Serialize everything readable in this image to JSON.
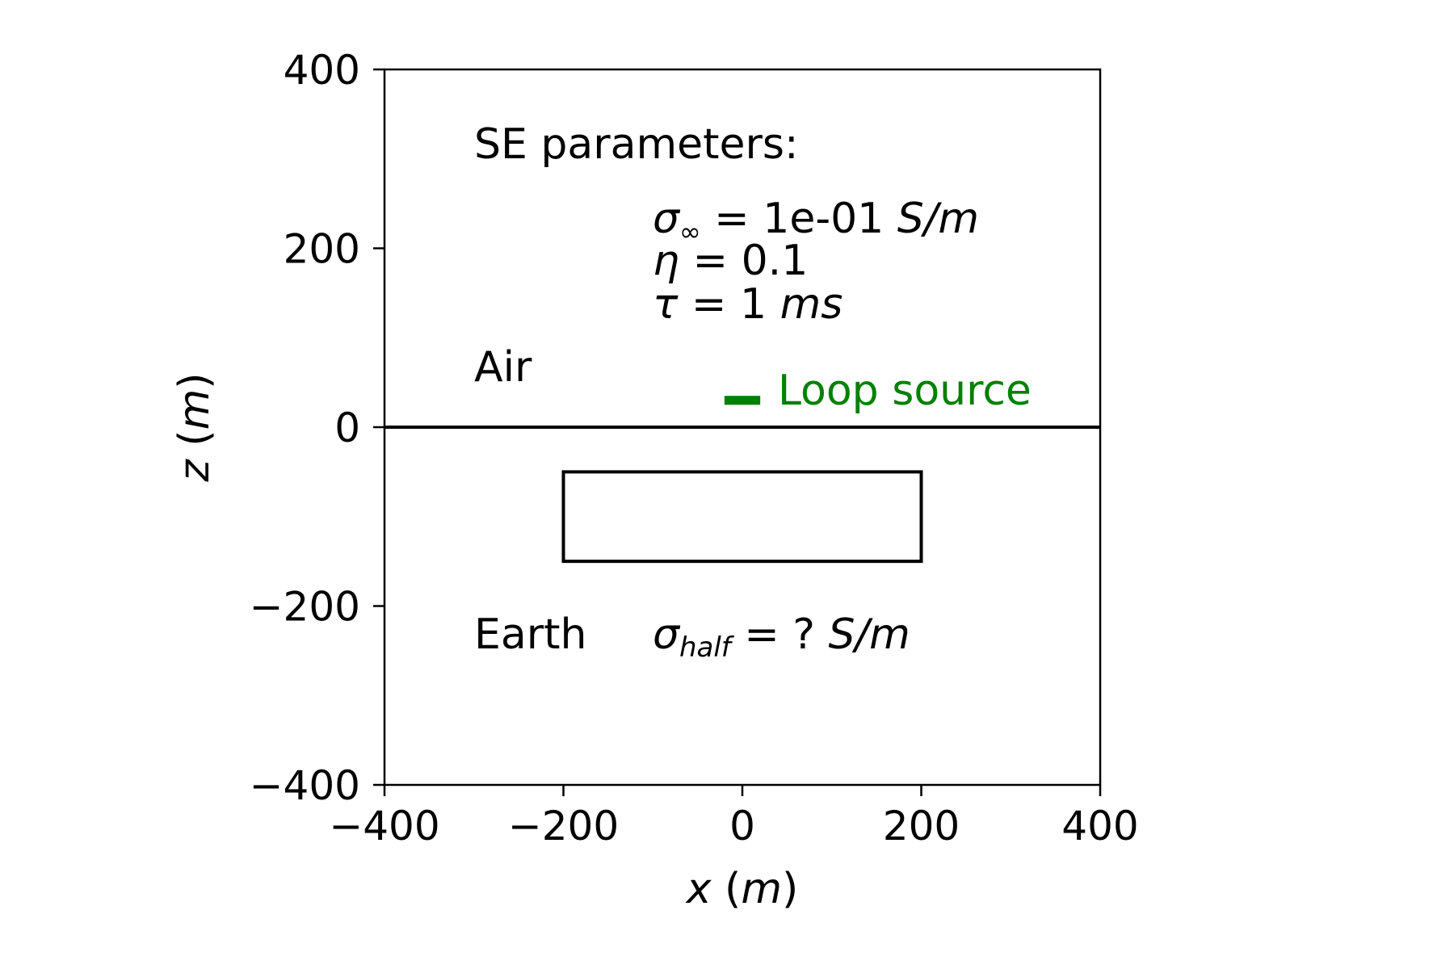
{
  "chart_data": {
    "type": "diagram",
    "xlabel": {
      "var": "x",
      "unit": "m"
    },
    "ylabel": {
      "var": "z",
      "unit": "m"
    },
    "xlim": [
      -400,
      400
    ],
    "ylim": [
      -400,
      400
    ],
    "xticks": [
      "−400",
      "−200",
      "0",
      "200",
      "400"
    ],
    "yticks": [
      "400",
      "200",
      "0",
      "−200",
      "−400"
    ],
    "surface_z": 0,
    "block": {
      "x": [
        -200,
        200
      ],
      "z": [
        -150,
        -50
      ]
    },
    "loop_source": {
      "x": [
        -20,
        20
      ],
      "z": [
        25,
        35
      ],
      "label": "Loop source",
      "color": "#008000"
    },
    "annotations": {
      "se_title": "SE parameters:",
      "sigma_inf": {
        "sym": "σ",
        "sub": "∞",
        "eq": " = 1e-01 ",
        "unit": "S/m"
      },
      "eta": {
        "sym": "η",
        "eq": " = 0.1"
      },
      "tau": {
        "sym": "τ",
        "eq": " = 1 ",
        "unit": "ms"
      },
      "air": "Air",
      "earth": "Earth",
      "sigma_half": {
        "sym": "σ",
        "sub": "half",
        "eq": " = ? ",
        "unit": "S/m"
      }
    }
  }
}
